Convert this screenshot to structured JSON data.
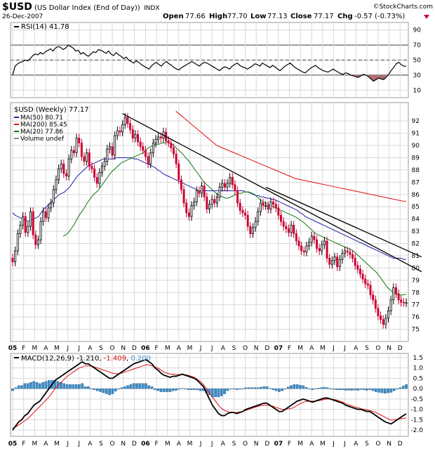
{
  "header": {
    "symbol": "$USD",
    "name": "(US Dollar Index (End of Day))",
    "exchange": "INDX",
    "date": "26-Dec-2007",
    "open_label": "Open",
    "open": "77.66",
    "high_label": "High",
    "high": "77.70",
    "low_label": "Low",
    "low": "77.13",
    "close_label": "Close",
    "close": "77.17",
    "chg_label": "Chg",
    "chg": "-0.57 (-0.73%)",
    "watermark": "©StockCharts.com"
  },
  "colors": {
    "up": "#000000",
    "down": "#cc0033",
    "ma50": "#1f1faa",
    "ma200": "#dd1111",
    "ma20": "#117711",
    "macd_hist": "#3d8ec8",
    "grid": "#d8d8d8",
    "rsi_fill": "#b07070"
  },
  "chart_data": [
    {
      "type": "line",
      "panel": "rsi",
      "legend": "RSI(14) 41.78",
      "ylim": [
        0,
        100
      ],
      "yticks": [
        10,
        30,
        50,
        70,
        90
      ],
      "ref_lines": [
        30,
        50,
        70
      ],
      "weeks": 155,
      "values": [
        30,
        42,
        45,
        47,
        48,
        50,
        49,
        52,
        56,
        58,
        57,
        60,
        58,
        61,
        63,
        65,
        62,
        66,
        68,
        67,
        64,
        66,
        70,
        68,
        66,
        62,
        63,
        58,
        60,
        57,
        55,
        58,
        61,
        60,
        64,
        63,
        61,
        59,
        62,
        58,
        56,
        60,
        57,
        55,
        52,
        54,
        50,
        48,
        46,
        49,
        47,
        44,
        42,
        40,
        38,
        42,
        45,
        47,
        44,
        42,
        46,
        48,
        45,
        43,
        40,
        38,
        37,
        40,
        42,
        44,
        46,
        48,
        46,
        44,
        42,
        45,
        47,
        46,
        44,
        42,
        40,
        38,
        36,
        39,
        41,
        40,
        38,
        42,
        44,
        46,
        43,
        41,
        40,
        38,
        40,
        42,
        45,
        44,
        42,
        46,
        44,
        42,
        40,
        43,
        41,
        38,
        36,
        39,
        42,
        44,
        46,
        43,
        40,
        38,
        36,
        34,
        33,
        36,
        39,
        41,
        43,
        40,
        38,
        36,
        35,
        34,
        36,
        38,
        36,
        34,
        32,
        31,
        33,
        32,
        30,
        29,
        28,
        27,
        29,
        31,
        30,
        28,
        25,
        22,
        24,
        26,
        25,
        24,
        27,
        31,
        36,
        40,
        45,
        47,
        44,
        42,
        41.78
      ]
    },
    {
      "type": "line",
      "panel": "price",
      "title": "$USD (Weekly) 77.17",
      "legend": [
        {
          "label": "MA(50) 80.71",
          "color": "#1f1faa"
        },
        {
          "label": "MA(200) 85.45",
          "color": "#dd1111"
        },
        {
          "label": "MA(20) 77.86",
          "color": "#117711"
        },
        {
          "label": "Volume undef",
          "color": "#888888"
        }
      ],
      "ylim": [
        74,
        93.5
      ],
      "yticks": [
        75,
        76,
        77,
        78,
        79,
        80,
        81,
        82,
        83,
        84,
        85,
        86,
        87,
        88,
        89,
        90,
        91,
        92
      ],
      "x_labels": [
        "05",
        "F",
        "M",
        "A",
        "M",
        "J",
        "J",
        "A",
        "S",
        "O",
        "N",
        "D",
        "06",
        "F",
        "M",
        "A",
        "M",
        "J",
        "J",
        "A",
        "S",
        "O",
        "N",
        "D",
        "07",
        "F",
        "M",
        "A",
        "M",
        "J",
        "J",
        "A",
        "S",
        "O",
        "N",
        "D"
      ],
      "x_label_weeks": [
        0,
        4.3,
        8.6,
        13,
        17.3,
        21.6,
        26,
        30.3,
        34.6,
        39,
        43.3,
        47.6,
        52,
        56.3,
        60.6,
        65,
        69.3,
        73.6,
        78,
        82.3,
        86.6,
        91,
        95.3,
        99.6,
        104,
        108.3,
        112.6,
        117,
        121.3,
        125.6,
        130,
        134.3,
        138.6,
        143,
        147.3,
        151.6
      ],
      "bold_x_labels": [
        "05",
        "06",
        "07"
      ],
      "close": [
        80.5,
        81.4,
        82.8,
        83.5,
        84.2,
        82.9,
        83.4,
        84.6,
        82.7,
        81.9,
        82.3,
        83.8,
        84.6,
        84.1,
        84.9,
        85.3,
        86.4,
        87.2,
        88.1,
        88.5,
        87.7,
        87.5,
        88.9,
        89.6,
        89.4,
        90.6,
        90.2,
        89.1,
        88.7,
        89.4,
        88.3,
        88.1,
        87.4,
        86.9,
        87.8,
        88.3,
        88.7,
        89.7,
        89.9,
        89.2,
        90.8,
        91.2,
        91.1,
        91.7,
        92.3,
        91.8,
        91.3,
        90.6,
        90.9,
        90.3,
        89.9,
        89.6,
        89.1,
        88.5,
        89.4,
        90.2,
        90.5,
        90.7,
        90.6,
        91.1,
        90.4,
        90.2,
        89.8,
        89.3,
        88.5,
        87.2,
        86.4,
        85.3,
        84.5,
        84.2,
        85.1,
        85.4,
        86.3,
        86.1,
        86.7,
        85.8,
        84.8,
        85.2,
        85.6,
        85.3,
        85.8,
        86.6,
        86.9,
        86.6,
        86.9,
        87.4,
        86.8,
        86.3,
        85.3,
        84.7,
        84.5,
        84.3,
        83.4,
        82.8,
        83.3,
        83.8,
        84.6,
        85.3,
        85.1,
        85.1,
        84.8,
        85.4,
        85.2,
        84.9,
        84.3,
        83.8,
        83.4,
        83.2,
        82.9,
        83.5,
        82.8,
        82.2,
        81.8,
        81.4,
        81.3,
        81.8,
        82.1,
        82.6,
        82.3,
        81.6,
        81.4,
        81.9,
        82.2,
        80.8,
        80.3,
        80.6,
        80.9,
        80.1,
        80.7,
        81.2,
        81.4,
        81.3,
        81.1,
        80.8,
        80.2,
        79.9,
        79.5,
        79.1,
        78.7,
        78.6,
        77.8,
        77.4,
        76.7,
        76.1,
        75.8,
        75.4,
        75.9,
        76.5,
        77.4,
        78.4,
        77.9,
        77.4,
        77.2,
        77.17,
        77.17
      ],
      "ma50": [
        84.5,
        84.3,
        84.2,
        84.1,
        84.0,
        83.9,
        83.8,
        83.9,
        84.0,
        84.1,
        84.2,
        84.5,
        84.8,
        85.0,
        85.2,
        85.4,
        85.6,
        85.8,
        86.0,
        86.1,
        86.2,
        86.4,
        86.6,
        86.9,
        87.2,
        87.5,
        87.7,
        87.9,
        88.1,
        88.3,
        88.4,
        88.5,
        88.6,
        88.7,
        88.8,
        88.9,
        88.9,
        88.9,
        88.9,
        88.9,
        89.0,
        89.0,
        89.0,
        89.0,
        89.0,
        89.0,
        89.0,
        88.9,
        88.9,
        88.8,
        88.7,
        88.6,
        88.5,
        88.4,
        88.3,
        88.2,
        88.0,
        87.9,
        87.7,
        87.6,
        87.5,
        87.4,
        87.3,
        87.2,
        87.1,
        87.0,
        86.9,
        86.8,
        86.7,
        86.6,
        86.5,
        86.4,
        86.3,
        86.3,
        86.3,
        86.3,
        86.3,
        86.3,
        86.3,
        86.3,
        86.3,
        86.3,
        86.3,
        86.3,
        86.3,
        86.3,
        86.3,
        86.3,
        86.3,
        86.3,
        86.2,
        86.2,
        86.1,
        86.0,
        85.9,
        85.9,
        85.8,
        85.8,
        85.7,
        85.7,
        85.6,
        85.6,
        85.5,
        85.4,
        85.3,
        85.2,
        85.1,
        85.0,
        84.9,
        84.8,
        84.7,
        84.5,
        84.4,
        84.2,
        84.1,
        84.0,
        83.9,
        83.8,
        83.7,
        83.6,
        83.5,
        83.4,
        83.3,
        83.2,
        83.1,
        83.0,
        82.9,
        82.8,
        82.7,
        82.6,
        82.5,
        82.4,
        82.3,
        82.2,
        82.1,
        82.0,
        81.9,
        81.8,
        81.7,
        81.6,
        81.5,
        81.4,
        81.3,
        81.2,
        81.1,
        81.0,
        80.9,
        80.8,
        80.8,
        80.8,
        80.8,
        80.7,
        80.71
      ],
      "ma200": [
        null,
        null,
        null,
        null,
        null,
        null,
        null,
        null,
        null,
        null,
        null,
        null,
        null,
        null,
        null,
        null,
        null,
        null,
        null,
        null,
        null,
        null,
        null,
        null,
        null,
        null,
        null,
        null,
        null,
        null,
        null,
        null,
        null,
        null,
        null,
        null,
        null,
        null,
        null,
        null,
        null,
        null,
        null,
        null,
        null,
        null,
        null,
        null,
        null,
        null,
        null,
        null,
        null,
        null,
        null,
        null,
        92.8,
        92.6,
        92.4,
        92.2,
        92.0,
        91.8,
        91.6,
        91.4,
        91.2,
        91.0,
        90.8,
        90.6,
        90.4,
        90.2,
        90.0,
        89.9,
        89.8,
        89.7,
        89.6,
        89.5,
        89.4,
        89.3,
        89.2,
        89.1,
        89.0,
        88.9,
        88.8,
        88.7,
        88.6,
        88.5,
        88.4,
        88.3,
        88.2,
        88.1,
        88.0,
        87.9,
        87.8,
        87.7,
        87.6,
        87.5,
        87.4,
        87.3,
        87.25,
        87.2,
        87.15,
        87.1,
        87.05,
        87.0,
        86.95,
        86.9,
        86.85,
        86.8,
        86.75,
        86.7,
        86.65,
        86.6,
        86.55,
        86.5,
        86.45,
        86.4,
        86.35,
        86.3,
        86.25,
        86.2,
        86.15,
        86.1,
        86.05,
        86.0,
        85.95,
        85.9,
        85.85,
        85.8,
        85.75,
        85.7,
        85.65,
        85.6,
        85.55,
        85.5,
        85.45,
        85.45
      ],
      "ma20": [
        null,
        null,
        null,
        null,
        null,
        null,
        null,
        null,
        null,
        null,
        null,
        null,
        null,
        null,
        null,
        null,
        null,
        null,
        null,
        82.6,
        82.7,
        82.9,
        83.2,
        83.5,
        83.9,
        84.3,
        84.6,
        84.9,
        85.3,
        85.6,
        85.9,
        86.1,
        86.3,
        86.6,
        86.9,
        87.2,
        87.5,
        87.8,
        88.0,
        88.2,
        88.4,
        88.6,
        88.7,
        88.8,
        88.9,
        89.0,
        89.1,
        89.2,
        89.3,
        89.4,
        89.6,
        89.8,
        89.9,
        90.0,
        90.1,
        90.1,
        90.2,
        90.2,
        90.3,
        90.2,
        90.1,
        89.9,
        89.7,
        89.5,
        89.3,
        89.0,
        88.8,
        88.5,
        88.2,
        87.9,
        87.6,
        87.3,
        87.0,
        86.8,
        86.6,
        86.4,
        86.2,
        86.0,
        85.9,
        85.8,
        85.7,
        85.7,
        85.8,
        85.9,
        86.0,
        86.1,
        86.1,
        86.2,
        86.2,
        86.2,
        86.1,
        86.0,
        85.8,
        85.6,
        85.4,
        85.3,
        85.2,
        85.1,
        85.0,
        84.9,
        84.8,
        84.7,
        84.6,
        84.5,
        84.4,
        84.3,
        84.2,
        84.1,
        83.9,
        83.8,
        83.6,
        83.4,
        83.2,
        83.0,
        82.8,
        82.7,
        82.6,
        82.5,
        82.4,
        82.3,
        82.2,
        82.1,
        82.0,
        81.9,
        81.8,
        81.7,
        81.6,
        81.5,
        81.4,
        81.2,
        81.0,
        80.8,
        80.6,
        80.4,
        80.2,
        80.0,
        79.8,
        79.6,
        79.3,
        79.0,
        78.7,
        78.4,
        78.2,
        78.0,
        77.9,
        77.8,
        77.8,
        77.8,
        77.86
      ],
      "trendlines": [
        {
          "from": [
            43,
            92.6
          ],
          "to": [
            160,
            79.7
          ]
        },
        {
          "from": [
            99,
            86.6
          ],
          "to": [
            160,
            80.9
          ]
        }
      ]
    },
    {
      "type": "line",
      "panel": "macd",
      "legend": {
        "name": "MACD(12,26,9)",
        "macd": "-1.210",
        "signal": "-1.409",
        "hist": "0.200"
      },
      "ylim": [
        -2.3,
        1.7
      ],
      "yticks": [
        1.5,
        1.0,
        0.5,
        0.0,
        -0.5,
        -1.0,
        -1.5,
        -2.0
      ],
      "x_labels": [
        "05",
        "F",
        "M",
        "A",
        "M",
        "J",
        "J",
        "A",
        "S",
        "O",
        "N",
        "D",
        "06",
        "F",
        "M",
        "A",
        "M",
        "J",
        "J",
        "A",
        "S",
        "O",
        "N",
        "D",
        "07",
        "F",
        "M",
        "A",
        "M",
        "J",
        "J",
        "A",
        "S",
        "O",
        "N",
        "D"
      ],
      "x_label_weeks": [
        0,
        4.3,
        8.6,
        13,
        17.3,
        21.6,
        26,
        30.3,
        34.6,
        39,
        43.3,
        47.6,
        52,
        56.3,
        60.6,
        65,
        69.3,
        73.6,
        78,
        82.3,
        86.6,
        91,
        95.3,
        99.6,
        104,
        108.3,
        112.6,
        117,
        121.3,
        125.6,
        130,
        134.3,
        138.6,
        143,
        147.3,
        151.6
      ],
      "macd": [
        -2.0,
        -1.8,
        -1.6,
        -1.5,
        -1.3,
        -1.2,
        -1.0,
        -0.8,
        -0.7,
        -0.6,
        -0.4,
        -0.2,
        0.0,
        0.2,
        0.4,
        0.5,
        0.6,
        0.7,
        0.8,
        0.9,
        1.0,
        1.1,
        1.2,
        1.3,
        1.2,
        1.2,
        1.1,
        1.0,
        0.9,
        0.8,
        0.7,
        0.6,
        0.5,
        0.5,
        0.6,
        0.7,
        0.8,
        0.9,
        1.0,
        1.1,
        1.2,
        1.25,
        1.3,
        1.35,
        1.4,
        1.3,
        1.2,
        1.0,
        0.9,
        0.75,
        0.65,
        0.6,
        0.55,
        0.6,
        0.6,
        0.65,
        0.7,
        0.65,
        0.6,
        0.55,
        0.5,
        0.4,
        0.25,
        0.1,
        -0.2,
        -0.5,
        -0.8,
        -1.0,
        -1.2,
        -1.3,
        -1.3,
        -1.2,
        -1.15,
        -1.15,
        -1.2,
        -1.15,
        -1.1,
        -1.0,
        -0.95,
        -0.9,
        -0.85,
        -0.8,
        -0.75,
        -0.7,
        -0.7,
        -0.8,
        -0.9,
        -1.0,
        -1.1,
        -1.1,
        -1.0,
        -0.9,
        -0.8,
        -0.7,
        -0.6,
        -0.55,
        -0.5,
        -0.55,
        -0.6,
        -0.65,
        -0.6,
        -0.55,
        -0.5,
        -0.45,
        -0.45,
        -0.5,
        -0.55,
        -0.6,
        -0.65,
        -0.7,
        -0.8,
        -0.85,
        -0.9,
        -0.95,
        -1.0,
        -1.0,
        -1.05,
        -1.1,
        -1.1,
        -1.2,
        -1.3,
        -1.4,
        -1.5,
        -1.6,
        -1.65,
        -1.7,
        -1.6,
        -1.5,
        -1.4,
        -1.3,
        -1.21
      ],
      "signal": [
        -1.9,
        -1.85,
        -1.75,
        -1.65,
        -1.55,
        -1.45,
        -1.3,
        -1.15,
        -1.0,
        -0.85,
        -0.7,
        -0.55,
        -0.4,
        -0.2,
        0.0,
        0.15,
        0.3,
        0.45,
        0.6,
        0.7,
        0.8,
        0.9,
        1.0,
        1.05,
        1.1,
        1.1,
        1.1,
        1.05,
        1.0,
        0.95,
        0.9,
        0.85,
        0.8,
        0.75,
        0.72,
        0.72,
        0.75,
        0.8,
        0.85,
        0.9,
        0.95,
        1.0,
        1.05,
        1.1,
        1.15,
        1.15,
        1.1,
        1.05,
        1.0,
        0.9,
        0.8,
        0.75,
        0.7,
        0.7,
        0.68,
        0.68,
        0.68,
        0.67,
        0.65,
        0.6,
        0.55,
        0.45,
        0.35,
        0.2,
        0.0,
        -0.2,
        -0.4,
        -0.6,
        -0.8,
        -0.95,
        -1.05,
        -1.1,
        -1.15,
        -1.15,
        -1.15,
        -1.12,
        -1.1,
        -1.05,
        -1.0,
        -0.95,
        -0.9,
        -0.85,
        -0.82,
        -0.8,
        -0.8,
        -0.82,
        -0.85,
        -0.9,
        -0.95,
        -1.0,
        -1.0,
        -0.98,
        -0.95,
        -0.9,
        -0.8,
        -0.72,
        -0.65,
        -0.62,
        -0.6,
        -0.6,
        -0.6,
        -0.58,
        -0.55,
        -0.52,
        -0.5,
        -0.5,
        -0.52,
        -0.55,
        -0.6,
        -0.65,
        -0.72,
        -0.78,
        -0.82,
        -0.88,
        -0.92,
        -0.96,
        -1.0,
        -1.02,
        -1.05,
        -1.1,
        -1.15,
        -1.22,
        -1.3,
        -1.38,
        -1.45,
        -1.52,
        -1.5,
        -1.48,
        -1.45,
        -1.43,
        -1.409
      ]
    }
  ]
}
